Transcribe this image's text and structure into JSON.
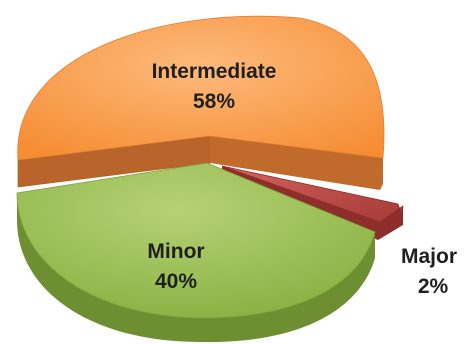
{
  "chart_data": {
    "type": "pie",
    "title": "",
    "slices": [
      {
        "label": "Intermediate",
        "value": 58,
        "percent_label": "58%",
        "color": "#F79646"
      },
      {
        "label": "Major",
        "value": 2,
        "percent_label": "2%",
        "color": "#C0504D"
      },
      {
        "label": "Minor",
        "value": 40,
        "percent_label": "40%",
        "color": "#9BBB59"
      }
    ],
    "legend": "none",
    "style": "3d-exploded"
  }
}
